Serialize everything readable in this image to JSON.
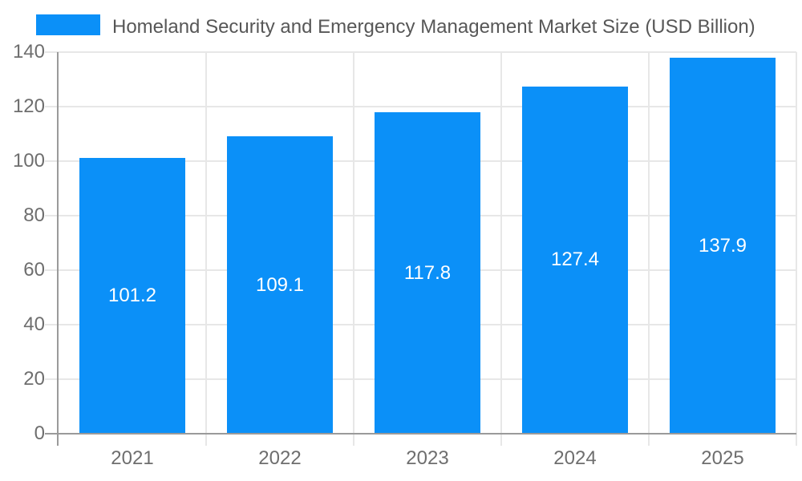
{
  "title": "Homeland Security and Emergency Management Market Size (USD Billion)",
  "legend": {
    "label": "Homeland Security and Emergency Management Market Size (USD Billion)",
    "marker_color": "#0B90F8",
    "position": "top-left"
  },
  "chart_data": {
    "type": "bar",
    "title": "Homeland Security and Emergency Management Market Size (USD Billion)",
    "categories": [
      "2021",
      "2022",
      "2023",
      "2024",
      "2025"
    ],
    "series": [
      {
        "name": "Homeland Security and Emergency Management Market Size (USD Billion)",
        "values": [
          101.2,
          109.1,
          117.8,
          127.4,
          137.9
        ]
      }
    ],
    "data_labels": [
      "101.2",
      "109.1",
      "117.8",
      "127.4",
      "137.9"
    ],
    "xlabel": "",
    "ylabel": "",
    "ylim": [
      0,
      140
    ],
    "ytick_step": 20,
    "yticks": [
      "0",
      "20",
      "40",
      "60",
      "80",
      "100",
      "120",
      "140"
    ],
    "grid": true,
    "legend_position": "top-left",
    "colors": {
      "bar": "#0B90F8",
      "grid": "#e7e7e7",
      "axis": "#9a9a9a",
      "tick_text": "#6e6e6e",
      "title_text": "#575757",
      "value_label_text": "#ffffff",
      "background": "#ffffff"
    }
  }
}
